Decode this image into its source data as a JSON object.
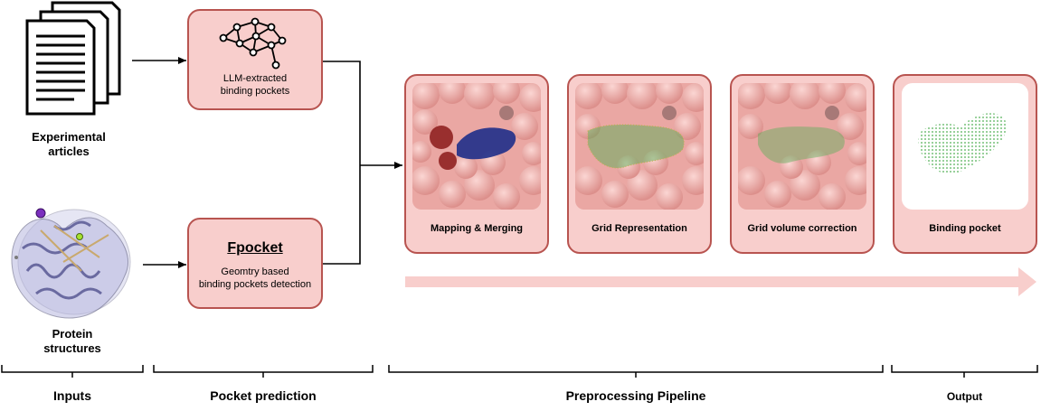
{
  "inputs": {
    "articles_label_line1": "Experimental",
    "articles_label_line2": "articles",
    "protein_label_line1": "Protein",
    "protein_label_line2": "structures"
  },
  "pocket_prediction": {
    "llm_box_line1": "LLM-extracted",
    "llm_box_line2": "binding pockets",
    "fpocket_title": "Fpocket",
    "fpocket_line1": "Geomtry based",
    "fpocket_line2": "binding pockets detection"
  },
  "pipeline": {
    "stages": [
      {
        "label": "Mapping & Merging"
      },
      {
        "label": "Grid Representation"
      },
      {
        "label": "Grid volume correction"
      },
      {
        "label": "Binding pocket"
      }
    ]
  },
  "sections": {
    "inputs": "Inputs",
    "pocket_prediction": "Pocket prediction",
    "preprocessing": "Preprocessing Pipeline",
    "output": "Output"
  },
  "colors": {
    "box_fill": "#f8cecc",
    "box_border": "#b85450",
    "arrow_pink": "#f8cecc",
    "protein_surface": "#f3b3b0",
    "pocket_blue": "#1f2f8a",
    "ligand_red": "#8b1a1a",
    "grid_green": "#4caf50"
  }
}
